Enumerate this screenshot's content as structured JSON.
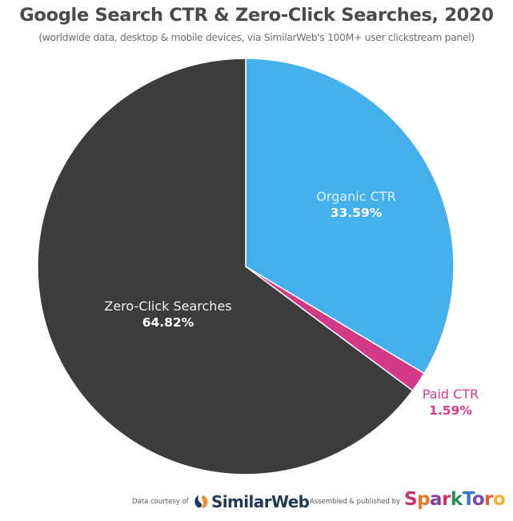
{
  "title": "Google Search CTR & Zero-Click Searches, 2020",
  "subtitle": "(worldwide data, desktop & mobile devices, via SimilarWeb's 100M+ user clickstream panel)",
  "chart_data": {
    "type": "pie",
    "title": "Google Search CTR & Zero-Click Searches, 2020",
    "subtitle": "(worldwide data, desktop & mobile devices, via SimilarWeb's 100M+ user clickstream panel)",
    "categories": [
      "Organic CTR",
      "Paid CTR",
      "Zero-Click Searches"
    ],
    "values": [
      33.59,
      1.59,
      64.82
    ],
    "unit": "%",
    "colors": [
      "#44b0ec",
      "#d23a88",
      "#3c3c3c"
    ],
    "start_angle": "12 o'clock",
    "direction": "clockwise",
    "legend": "none (labels on/next to slices)"
  },
  "slices": [
    {
      "name": "Organic CTR",
      "value_label": "33.59%",
      "color": "#44b0ec"
    },
    {
      "name": "Paid CTR",
      "value_label": "1.59%",
      "color": "#d23a88"
    },
    {
      "name": "Zero-Click Searches",
      "value_label": "64.82%",
      "color": "#3c3c3c"
    }
  ],
  "footer": {
    "courtesy_text": "Data courtesy of",
    "similarweb_logo_text": "SimilarWeb",
    "assembled_text": "Assembled & published by",
    "sparktoro_logo_letters": [
      {
        "ch": "S",
        "color": "#c8336f"
      },
      {
        "ch": "p",
        "color": "#e8782a"
      },
      {
        "ch": "a",
        "color": "#8a3f9c"
      },
      {
        "ch": "r",
        "color": "#d4335f"
      },
      {
        "ch": "k",
        "color": "#2f8f5a"
      },
      {
        "ch": "T",
        "color": "#3a76c4"
      },
      {
        "ch": "o",
        "color": "#7e4aa8"
      },
      {
        "ch": "r",
        "color": "#e05a3a"
      },
      {
        "ch": "o",
        "color": "#f2b233"
      }
    ]
  }
}
